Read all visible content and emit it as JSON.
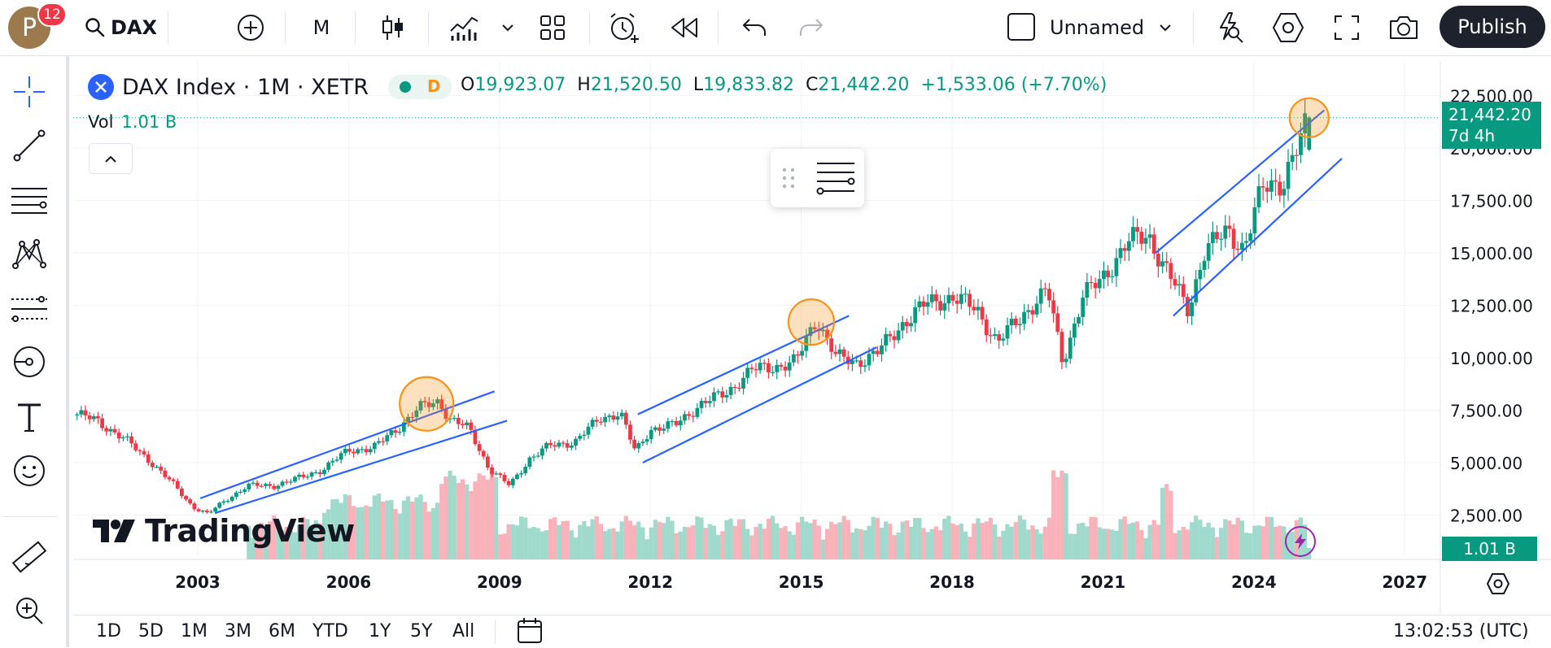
{
  "user": {
    "avatar_letter": "P",
    "notification_count": "12"
  },
  "toolbar": {
    "symbol": "DAX",
    "interval": "M",
    "layout_name": "Unnamed",
    "publish_label": "Publish"
  },
  "legend": {
    "title": "DAX Index · 1M · XETR",
    "market_status": "D",
    "open_label": "O",
    "open": "19,923.07",
    "high_label": "H",
    "high": "21,520.50",
    "low_label": "L",
    "low": "19,833.82",
    "close_label": "C",
    "close": "21,442.20",
    "change": "+1,533.06 (+7.70%)",
    "volume_label": "Vol",
    "volume": "1.01 B"
  },
  "price_tag": {
    "price": "21,442.20",
    "countdown": "7d 4h"
  },
  "volume_tag": "1.01 B",
  "y_axis_labels": [
    "22,500.00",
    "20,000.00",
    "17,500.00",
    "15,000.00",
    "12,500.00",
    "10,000.00",
    "7,500.00",
    "5,000.00",
    "2,500.00"
  ],
  "x_axis_labels": [
    "2003",
    "2006",
    "2009",
    "2012",
    "2015",
    "2018",
    "2021",
    "2024",
    "2027"
  ],
  "date_ranges": [
    "1D",
    "5D",
    "1M",
    "3M",
    "6M",
    "YTD",
    "1Y",
    "5Y",
    "All"
  ],
  "clock": "13:02:53 (UTC)",
  "watermark": "TradingView",
  "colors": {
    "up": "#089981",
    "down": "#f23645",
    "trendline": "#2962ff",
    "highlight": "#f7931a"
  },
  "chart_data": {
    "type": "candlestick",
    "title": "DAX Index · 1M · XETR",
    "x_range": [
      2000.6,
      2027.6
    ],
    "y_range": [
      0,
      23500
    ],
    "series": [
      {
        "name": "DAX",
        "anchors": [
          [
            2000.6,
            7300
          ],
          [
            2001.0,
            7000
          ],
          [
            2001.5,
            6200
          ],
          [
            2002.0,
            5200
          ],
          [
            2002.5,
            4000
          ],
          [
            2002.9,
            2900
          ],
          [
            2003.2,
            2550
          ],
          [
            2003.6,
            3300
          ],
          [
            2004.0,
            3900
          ],
          [
            2004.5,
            3900
          ],
          [
            2005.0,
            4250
          ],
          [
            2005.5,
            4700
          ],
          [
            2006.0,
            5600
          ],
          [
            2006.5,
            5700
          ],
          [
            2007.0,
            6700
          ],
          [
            2007.4,
            7600
          ],
          [
            2007.8,
            7950
          ],
          [
            2008.0,
            7100
          ],
          [
            2008.4,
            6600
          ],
          [
            2008.8,
            4700
          ],
          [
            2009.2,
            3900
          ],
          [
            2009.6,
            5200
          ],
          [
            2010.0,
            5800
          ],
          [
            2010.5,
            6000
          ],
          [
            2011.0,
            7100
          ],
          [
            2011.4,
            7400
          ],
          [
            2011.7,
            5500
          ],
          [
            2012.0,
            6600
          ],
          [
            2012.5,
            6800
          ],
          [
            2013.0,
            7800
          ],
          [
            2013.5,
            8300
          ],
          [
            2014.0,
            9400
          ],
          [
            2014.5,
            9600
          ],
          [
            2014.9,
            9800
          ],
          [
            2015.3,
            11900
          ],
          [
            2015.7,
            10000
          ],
          [
            2016.1,
            9800
          ],
          [
            2016.5,
            10200
          ],
          [
            2017.0,
            11600
          ],
          [
            2017.5,
            12600
          ],
          [
            2018.0,
            12900
          ],
          [
            2018.5,
            12300
          ],
          [
            2018.9,
            10700
          ],
          [
            2019.5,
            12300
          ],
          [
            2019.9,
            13200
          ],
          [
            2020.2,
            9800
          ],
          [
            2020.6,
            12900
          ],
          [
            2020.95,
            13700
          ],
          [
            2021.5,
            15500
          ],
          [
            2021.9,
            15900
          ],
          [
            2022.2,
            14400
          ],
          [
            2022.7,
            12300
          ],
          [
            2023.0,
            15000
          ],
          [
            2023.5,
            16100
          ],
          [
            2023.8,
            15200
          ],
          [
            2024.2,
            18200
          ],
          [
            2024.6,
            18500
          ],
          [
            2024.9,
            20100
          ],
          [
            2025.1,
            21442
          ]
        ]
      },
      {
        "name": "Volume",
        "relative": true
      }
    ]
  }
}
